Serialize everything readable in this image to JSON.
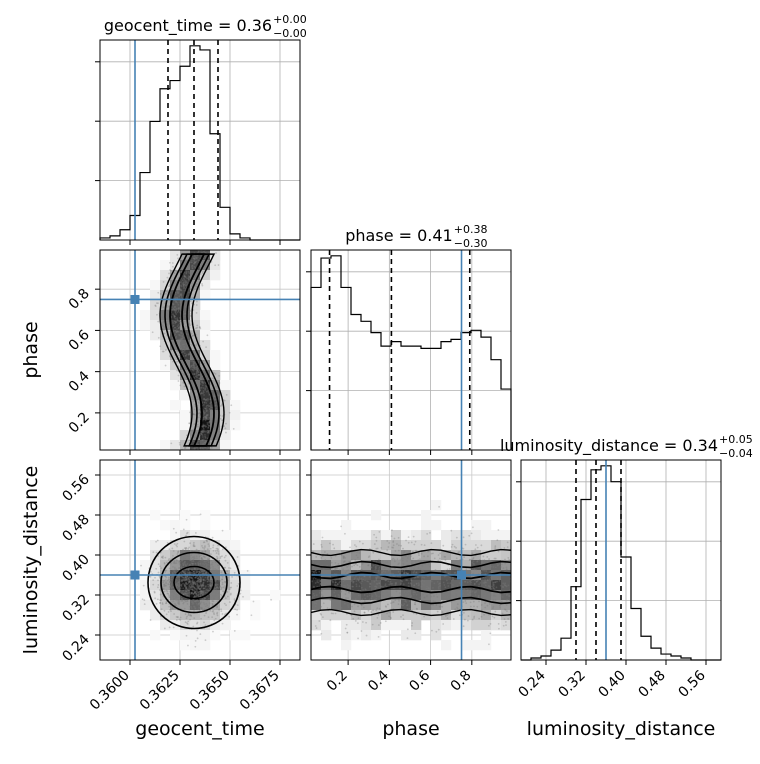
{
  "chart_data": {
    "type": "corner",
    "parameters": [
      "geocent_time",
      "phase",
      "luminosity_distance"
    ],
    "titles": [
      {
        "param": "geocent_time",
        "text": "geocent_time = 0.36",
        "sup": "+0.00",
        "sub": "−0.00"
      },
      {
        "param": "phase",
        "text": "phase = 0.41",
        "sup": "+0.38",
        "sub": "−0.30"
      },
      {
        "param": "luminosity_distance",
        "text": "luminosity_distance = 0.34",
        "sup": "+0.05",
        "sub": "−0.04"
      }
    ],
    "axis_labels": {
      "x": [
        "geocent_time",
        "phase",
        "luminosity_distance"
      ],
      "y": [
        "phase",
        "luminosity_distance"
      ]
    },
    "axis_ranges": {
      "geocent_time": [
        0.3585,
        0.3685
      ],
      "phase": [
        0.02,
        0.99
      ],
      "luminosity_distance": [
        0.19,
        0.59
      ]
    },
    "ticks": {
      "geocent_time": {
        "values": [
          0.36,
          0.3625,
          0.365,
          0.3675
        ],
        "labels": [
          "0.3600",
          "0.3625",
          "0.3650",
          "0.3675"
        ]
      },
      "phase": {
        "values": [
          0.2,
          0.4,
          0.6,
          0.8
        ],
        "labels": [
          "0.2",
          "0.4",
          "0.6",
          "0.8"
        ]
      },
      "luminosity_distance": {
        "values": [
          0.24,
          0.32,
          0.4,
          0.48,
          0.56
        ],
        "labels": [
          "0.24",
          "0.32",
          "0.40",
          "0.48",
          "0.56"
        ]
      }
    },
    "truths": {
      "geocent_time": 0.36025,
      "phase": 0.75,
      "luminosity_distance": 0.36
    },
    "quantiles": {
      "geocent_time": [
        0.3619,
        0.3632,
        0.3644
      ],
      "phase": [
        0.11,
        0.41,
        0.79
      ],
      "luminosity_distance": [
        0.3,
        0.34,
        0.39
      ]
    },
    "histograms": {
      "geocent_time": {
        "edges": [
          0.3585,
          0.359,
          0.3595,
          0.36,
          0.3605,
          0.361,
          0.3615,
          0.362,
          0.3625,
          0.363,
          0.3635,
          0.364,
          0.3645,
          0.365,
          0.3655,
          0.366,
          0.3665,
          0.367,
          0.3675,
          0.368,
          0.3685
        ],
        "counts": [
          1,
          2,
          5,
          12,
          33,
          58,
          74,
          78,
          85,
          95,
          93,
          52,
          16,
          3,
          1,
          0,
          0,
          0,
          0,
          0
        ]
      },
      "phase": {
        "edges": [
          0.02,
          0.0685,
          0.117,
          0.1655,
          0.214,
          0.2625,
          0.311,
          0.3595,
          0.408,
          0.4565,
          0.505,
          0.5535,
          0.602,
          0.6505,
          0.699,
          0.7475,
          0.796,
          0.8445,
          0.893,
          0.9415,
          0.99
        ],
        "counts": [
          72,
          85,
          86,
          72,
          60,
          57,
          52,
          46,
          48,
          46,
          46,
          45,
          45,
          48,
          49,
          52,
          53,
          50,
          40,
          27
        ]
      },
      "luminosity_distance": {
        "edges": [
          0.19,
          0.21,
          0.23,
          0.25,
          0.27,
          0.29,
          0.31,
          0.33,
          0.35,
          0.37,
          0.39,
          0.41,
          0.43,
          0.45,
          0.47,
          0.49,
          0.51,
          0.53,
          0.55,
          0.57,
          0.59
        ],
        "counts": [
          0,
          1,
          2,
          5,
          11,
          37,
          81,
          96,
          98,
          90,
          52,
          26,
          12,
          6,
          3,
          2,
          1,
          0,
          0,
          0
        ]
      }
    },
    "grid": true,
    "truth_color": "#4682b4"
  }
}
